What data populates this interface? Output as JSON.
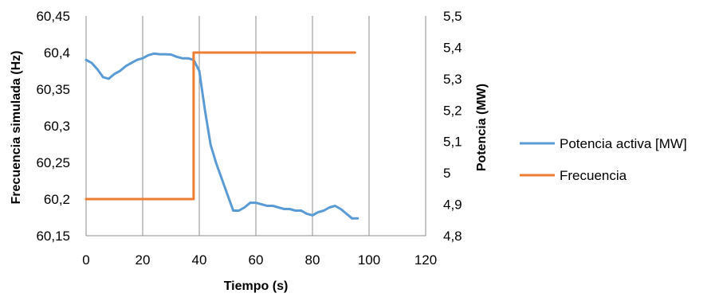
{
  "chart_data": {
    "type": "line",
    "title": "",
    "xlabel": "Tiempo (s)",
    "ylabel_left": "Frecuencia simulada (Hz)",
    "ylabel_right": "Potencia (MW)",
    "xlim": [
      0,
      120
    ],
    "ylim_left": [
      60.15,
      60.45
    ],
    "ylim_right": [
      4.8,
      5.5
    ],
    "x_ticks": [
      "0",
      "20",
      "40",
      "60",
      "80",
      "100",
      "120"
    ],
    "y_ticks_left": [
      "60,45",
      "60,4",
      "60,35",
      "60,3",
      "60,25",
      "60,2",
      "60,15"
    ],
    "y_ticks_right": [
      "5,5",
      "5,4",
      "5,3",
      "5,2",
      "5,1",
      "5",
      "4,9",
      "4,8"
    ],
    "grid": "vertical",
    "legend_position": "right",
    "series": [
      {
        "name": "Potencia activa [MW]",
        "axis": "right",
        "color": "#5B9BD5",
        "x": [
          0,
          2,
          4,
          6,
          8,
          10,
          12,
          14,
          16,
          18,
          20,
          22,
          24,
          26,
          28,
          30,
          32,
          34,
          36,
          38,
          40,
          42,
          44,
          46,
          48,
          50,
          52,
          54,
          56,
          58,
          60,
          62,
          64,
          66,
          68,
          70,
          72,
          74,
          76,
          78,
          80,
          82,
          84,
          86,
          88,
          90,
          92,
          94,
          96
        ],
        "values": [
          5.36,
          5.35,
          5.33,
          5.305,
          5.3,
          5.315,
          5.325,
          5.34,
          5.35,
          5.36,
          5.365,
          5.375,
          5.38,
          5.378,
          5.378,
          5.377,
          5.37,
          5.365,
          5.365,
          5.36,
          5.325,
          5.2,
          5.09,
          5.03,
          4.98,
          4.93,
          4.88,
          4.88,
          4.89,
          4.905,
          4.905,
          4.9,
          4.895,
          4.895,
          4.89,
          4.885,
          4.885,
          4.88,
          4.88,
          4.87,
          4.865,
          4.875,
          4.88,
          4.89,
          4.895,
          4.885,
          4.87,
          4.855,
          4.855
        ]
      },
      {
        "name": "Frecuencia",
        "axis": "left",
        "color": "#ED7D31",
        "x": [
          0,
          38,
          38,
          95
        ],
        "values": [
          60.2,
          60.2,
          60.4,
          60.4
        ]
      }
    ]
  }
}
